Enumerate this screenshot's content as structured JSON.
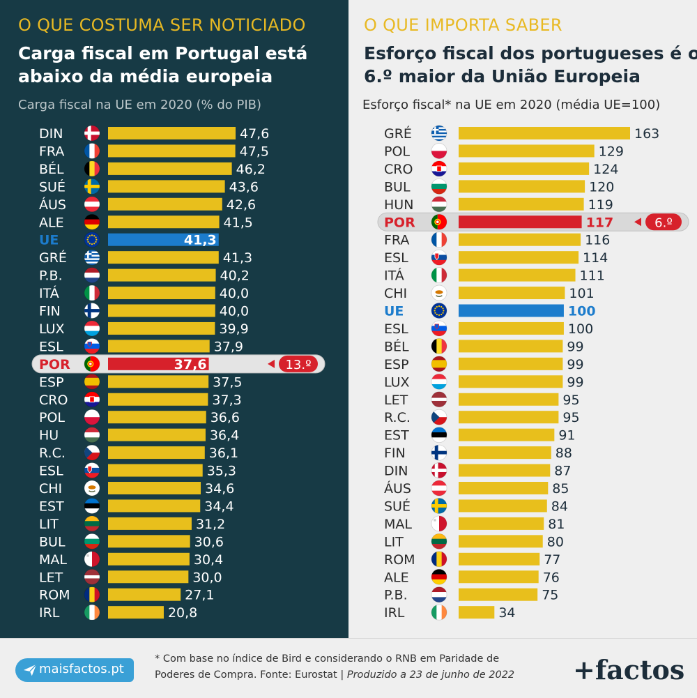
{
  "left": {
    "kicker": "O QUE COSTUMA SER NOTICIADO",
    "title_line1": "Carga fiscal em Portugal está",
    "title_line2": "abaixo da média europeia",
    "subtitle": "Carga fiscal na UE em 2020 (% do PIB)",
    "rank_badge": "13.º"
  },
  "right": {
    "kicker": "O QUE IMPORTA SABER",
    "title_line1": "Esforço fiscal dos portugueses é o",
    "title_line2": "6.º maior da União Europeia",
    "subtitle": "Esforço fiscal* na UE em 2020 (média UE=100)",
    "rank_badge": "6.º"
  },
  "colors": {
    "bar": "#e8bf1c",
    "portugal": "#d7212b",
    "eu": "#1c7ccc",
    "left_background": "#173a45",
    "right_background": "#efefef",
    "kicker": "#e8b923"
  },
  "chart_data": [
    {
      "type": "bar",
      "orientation": "horizontal",
      "title": "Carga fiscal na UE em 2020 (% do PIB)",
      "xlabel": "",
      "ylabel": "",
      "categories": [
        "DIN",
        "FRA",
        "BÉL",
        "SUÉ",
        "ÁUS",
        "ALE",
        "UE",
        "GRÉ",
        "P.B.",
        "ITÁ",
        "FIN",
        "LUX",
        "ESL",
        "POR",
        "ESP",
        "CRO",
        "POL",
        "HU",
        "R.C.",
        "ESL",
        "CHI",
        "EST",
        "LIT",
        "BUL",
        "MAL",
        "LET",
        "ROM",
        "IRL"
      ],
      "flags": [
        "denmark",
        "france",
        "belgium",
        "sweden",
        "austria",
        "germany",
        "eu",
        "greece",
        "netherlands",
        "italy",
        "finland",
        "luxembourg",
        "slovenia",
        "portugal",
        "spain",
        "croatia",
        "poland",
        "hungary",
        "czechia",
        "slovakia",
        "cyprus",
        "estonia",
        "lithuania",
        "bulgaria",
        "malta",
        "latvia",
        "romania",
        "ireland"
      ],
      "values": [
        47.6,
        47.5,
        46.2,
        43.6,
        42.6,
        41.5,
        41.3,
        41.3,
        40.2,
        40.0,
        40.0,
        39.9,
        37.9,
        37.6,
        37.5,
        37.3,
        36.6,
        36.4,
        36.1,
        35.3,
        34.6,
        34.4,
        31.2,
        30.6,
        30.4,
        30.0,
        27.1,
        20.8
      ],
      "labels": [
        "47,6",
        "47,5",
        "46,2",
        "43,6",
        "42,6",
        "41,5",
        "41,3",
        "41,3",
        "40,2",
        "40,0",
        "40,0",
        "39,9",
        "37,9",
        "37,6",
        "37,5",
        "37,3",
        "36,6",
        "36,4",
        "36,1",
        "35,3",
        "34,6",
        "34,4",
        "31,2",
        "30,6",
        "30,4",
        "30,0",
        "27,1",
        "20,8"
      ],
      "highlight": "POR",
      "average": "UE",
      "xlim": [
        0,
        60
      ],
      "grid": false,
      "legend": "none"
    },
    {
      "type": "bar",
      "orientation": "horizontal",
      "title": "Esforço fiscal* na UE em 2020 (média UE=100)",
      "xlabel": "",
      "ylabel": "",
      "categories": [
        "GRÉ",
        "POL",
        "CRO",
        "BUL",
        "HUN",
        "POR",
        "FRA",
        "ESL",
        "ITÁ",
        "CHI",
        "UE",
        "ESL",
        "BÉL",
        "ESP",
        "LUX",
        "LET",
        "R.C.",
        "EST",
        "FIN",
        "DIN",
        "ÁUS",
        "SUÉ",
        "MAL",
        "LIT",
        "ROM",
        "ALE",
        "P.B.",
        "IRL"
      ],
      "flags": [
        "greece",
        "poland",
        "croatia",
        "bulgaria",
        "hungary",
        "portugal",
        "france",
        "slovakia",
        "italy",
        "cyprus",
        "eu",
        "slovenia",
        "belgium",
        "spain",
        "luxembourg",
        "latvia",
        "czechia",
        "estonia",
        "finland",
        "denmark",
        "austria",
        "sweden",
        "malta",
        "lithuania",
        "romania",
        "germany",
        "netherlands",
        "ireland"
      ],
      "values": [
        163,
        129,
        124,
        120,
        119,
        117,
        116,
        114,
        111,
        101,
        100,
        100,
        99,
        99,
        99,
        95,
        95,
        91,
        88,
        87,
        85,
        84,
        81,
        80,
        77,
        76,
        75,
        34
      ],
      "labels": [
        "163",
        "129",
        "124",
        "120",
        "119",
        "117",
        "116",
        "114",
        "111",
        "101",
        "100",
        "100",
        "99",
        "99",
        "99",
        "95",
        "95",
        "91",
        "88",
        "87",
        "85",
        "84",
        "81",
        "80",
        "77",
        "76",
        "75",
        "34"
      ],
      "highlight": "POR",
      "average": "UE",
      "xlim": [
        0,
        200
      ],
      "grid": false,
      "legend": "none"
    }
  ],
  "footer": {
    "site": "maisfactos.pt",
    "footnote_line1": "* Com base no índice de Bird e considerando o RNB em Paridade de",
    "footnote_line2_a": "Poderes de Compra. Fonte: Eurostat |",
    "footnote_line2_b": "Produzido a 23 de junho de 2022",
    "logo": "+factos"
  }
}
